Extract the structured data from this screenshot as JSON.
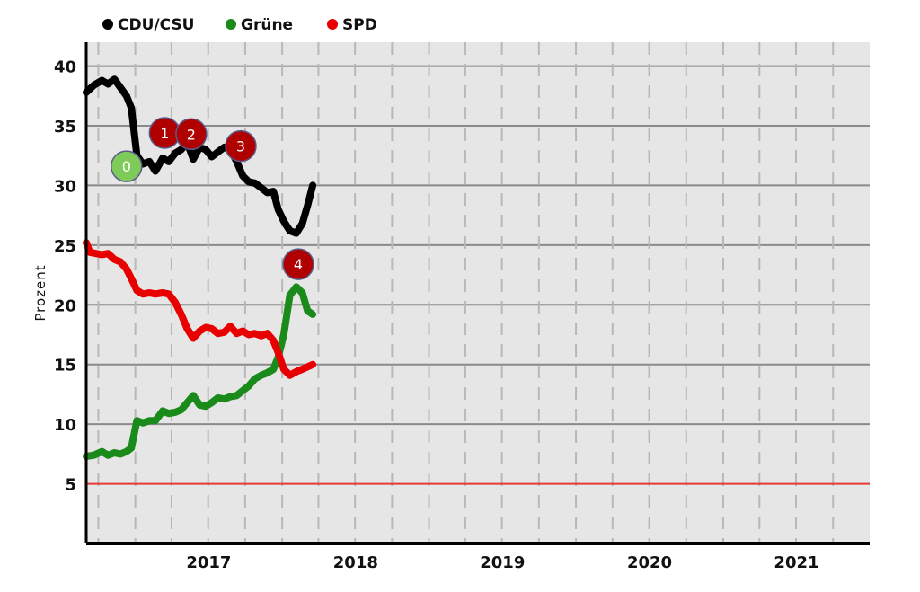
{
  "chart_data": {
    "type": "line",
    "title": "",
    "xlabel": "",
    "ylabel": "Prozent",
    "ylim": [
      0,
      42
    ],
    "x_range": [
      "2016-09-01",
      "2021-12-31"
    ],
    "yticks": [
      5,
      10,
      15,
      20,
      25,
      30,
      35,
      40
    ],
    "xtick_labels": [
      "2017",
      "2018",
      "2019",
      "2020",
      "2021"
    ],
    "legend_position": "top-left",
    "grid": true,
    "threshold": {
      "value": 5,
      "color": "#e53935"
    },
    "series": [
      {
        "name": "CDU/CSU",
        "color": "#000000",
        "points": [
          [
            "2016-09-01",
            37.8
          ],
          [
            "2016-09-20",
            38.4
          ],
          [
            "2016-10-10",
            38.8
          ],
          [
            "2016-10-25",
            38.5
          ],
          [
            "2016-11-10",
            38.9
          ],
          [
            "2016-11-25",
            38.2
          ],
          [
            "2016-12-10",
            37.5
          ],
          [
            "2016-12-22",
            36.5
          ],
          [
            "2017-01-05",
            32.5
          ],
          [
            "2017-01-20",
            31.8
          ],
          [
            "2017-02-05",
            32.0
          ],
          [
            "2017-02-20",
            31.2
          ],
          [
            "2017-03-10",
            32.3
          ],
          [
            "2017-03-25",
            32.0
          ],
          [
            "2017-04-10",
            32.7
          ],
          [
            "2017-04-25",
            33.0
          ],
          [
            "2017-05-10",
            33.6
          ],
          [
            "2017-05-25",
            32.2
          ],
          [
            "2017-06-10",
            33.2
          ],
          [
            "2017-06-25",
            33.0
          ],
          [
            "2017-07-10",
            32.4
          ],
          [
            "2017-07-25",
            32.8
          ],
          [
            "2017-08-10",
            33.2
          ],
          [
            "2017-08-25",
            33.0
          ],
          [
            "2017-09-10",
            32.0
          ],
          [
            "2017-09-25",
            30.8
          ],
          [
            "2017-10-10",
            30.3
          ],
          [
            "2017-10-25",
            30.2
          ],
          [
            "2017-11-10",
            29.8
          ],
          [
            "2017-11-25",
            29.4
          ],
          [
            "2017-12-10",
            29.5
          ],
          [
            "2017-12-22",
            28.0
          ],
          [
            "2018-01-05",
            27.0
          ],
          [
            "2018-01-20",
            26.2
          ],
          [
            "2018-02-05",
            26.0
          ],
          [
            "2018-02-20",
            26.8
          ],
          [
            "2018-03-05",
            28.3
          ],
          [
            "2018-03-18",
            30.0
          ]
        ]
      },
      {
        "name": "Grüne",
        "color": "#1a8a1a",
        "points": [
          [
            "2016-09-01",
            7.3
          ],
          [
            "2016-09-20",
            7.4
          ],
          [
            "2016-10-10",
            7.7
          ],
          [
            "2016-10-25",
            7.4
          ],
          [
            "2016-11-10",
            7.6
          ],
          [
            "2016-11-25",
            7.5
          ],
          [
            "2016-12-10",
            7.7
          ],
          [
            "2016-12-22",
            8.0
          ],
          [
            "2017-01-05",
            10.3
          ],
          [
            "2017-01-20",
            10.1
          ],
          [
            "2017-02-05",
            10.3
          ],
          [
            "2017-02-20",
            10.3
          ],
          [
            "2017-03-10",
            11.1
          ],
          [
            "2017-03-25",
            10.9
          ],
          [
            "2017-04-10",
            11.0
          ],
          [
            "2017-04-25",
            11.2
          ],
          [
            "2017-05-10",
            11.8
          ],
          [
            "2017-05-25",
            12.4
          ],
          [
            "2017-06-10",
            11.6
          ],
          [
            "2017-06-25",
            11.5
          ],
          [
            "2017-07-10",
            11.8
          ],
          [
            "2017-07-25",
            12.2
          ],
          [
            "2017-08-10",
            12.1
          ],
          [
            "2017-08-25",
            12.3
          ],
          [
            "2017-09-10",
            12.4
          ],
          [
            "2017-09-25",
            12.8
          ],
          [
            "2017-10-10",
            13.2
          ],
          [
            "2017-10-25",
            13.8
          ],
          [
            "2017-11-10",
            14.1
          ],
          [
            "2017-11-25",
            14.3
          ],
          [
            "2017-12-10",
            14.6
          ],
          [
            "2017-12-22",
            15.6
          ],
          [
            "2018-01-05",
            17.5
          ],
          [
            "2018-01-20",
            20.8
          ],
          [
            "2018-02-05",
            21.5
          ],
          [
            "2018-02-20",
            21.0
          ],
          [
            "2018-03-05",
            19.5
          ],
          [
            "2018-03-18",
            19.2
          ]
        ]
      },
      {
        "name": "SPD",
        "color": "#e80000",
        "points": [
          [
            "2016-09-01",
            25.2
          ],
          [
            "2016-09-10",
            24.4
          ],
          [
            "2016-10-10",
            24.2
          ],
          [
            "2016-10-25",
            24.3
          ],
          [
            "2016-11-10",
            23.8
          ],
          [
            "2016-11-25",
            23.6
          ],
          [
            "2016-12-10",
            23.0
          ],
          [
            "2016-12-22",
            22.2
          ],
          [
            "2017-01-05",
            21.2
          ],
          [
            "2017-01-20",
            20.9
          ],
          [
            "2017-02-05",
            21.0
          ],
          [
            "2017-02-20",
            20.9
          ],
          [
            "2017-03-10",
            21.0
          ],
          [
            "2017-03-25",
            20.9
          ],
          [
            "2017-04-10",
            20.2
          ],
          [
            "2017-04-25",
            19.2
          ],
          [
            "2017-05-10",
            18.0
          ],
          [
            "2017-05-25",
            17.2
          ],
          [
            "2017-06-10",
            17.8
          ],
          [
            "2017-06-25",
            18.1
          ],
          [
            "2017-07-10",
            18.0
          ],
          [
            "2017-07-25",
            17.6
          ],
          [
            "2017-08-10",
            17.7
          ],
          [
            "2017-08-25",
            18.2
          ],
          [
            "2017-09-10",
            17.6
          ],
          [
            "2017-09-25",
            17.8
          ],
          [
            "2017-10-10",
            17.5
          ],
          [
            "2017-10-25",
            17.6
          ],
          [
            "2017-11-10",
            17.4
          ],
          [
            "2017-11-25",
            17.6
          ],
          [
            "2017-12-10",
            17.0
          ],
          [
            "2017-12-22",
            16.0
          ],
          [
            "2018-01-05",
            14.6
          ],
          [
            "2018-01-20",
            14.1
          ],
          [
            "2018-02-05",
            14.4
          ],
          [
            "2018-02-20",
            14.6
          ],
          [
            "2018-03-05",
            14.8
          ],
          [
            "2018-03-18",
            15.0
          ]
        ]
      }
    ],
    "annotations": [
      {
        "label": "0",
        "x": "2016-12-10",
        "y": 31.6,
        "color": "#7ecb5a"
      },
      {
        "label": "1",
        "x": "2017-03-15",
        "y": 34.4,
        "color": "#b00000"
      },
      {
        "label": "2",
        "x": "2017-05-20",
        "y": 34.3,
        "color": "#b00000"
      },
      {
        "label": "3",
        "x": "2017-09-20",
        "y": 33.3,
        "color": "#b00000"
      },
      {
        "label": "4",
        "x": "2018-02-10",
        "y": 23.4,
        "color": "#b00000"
      }
    ]
  }
}
